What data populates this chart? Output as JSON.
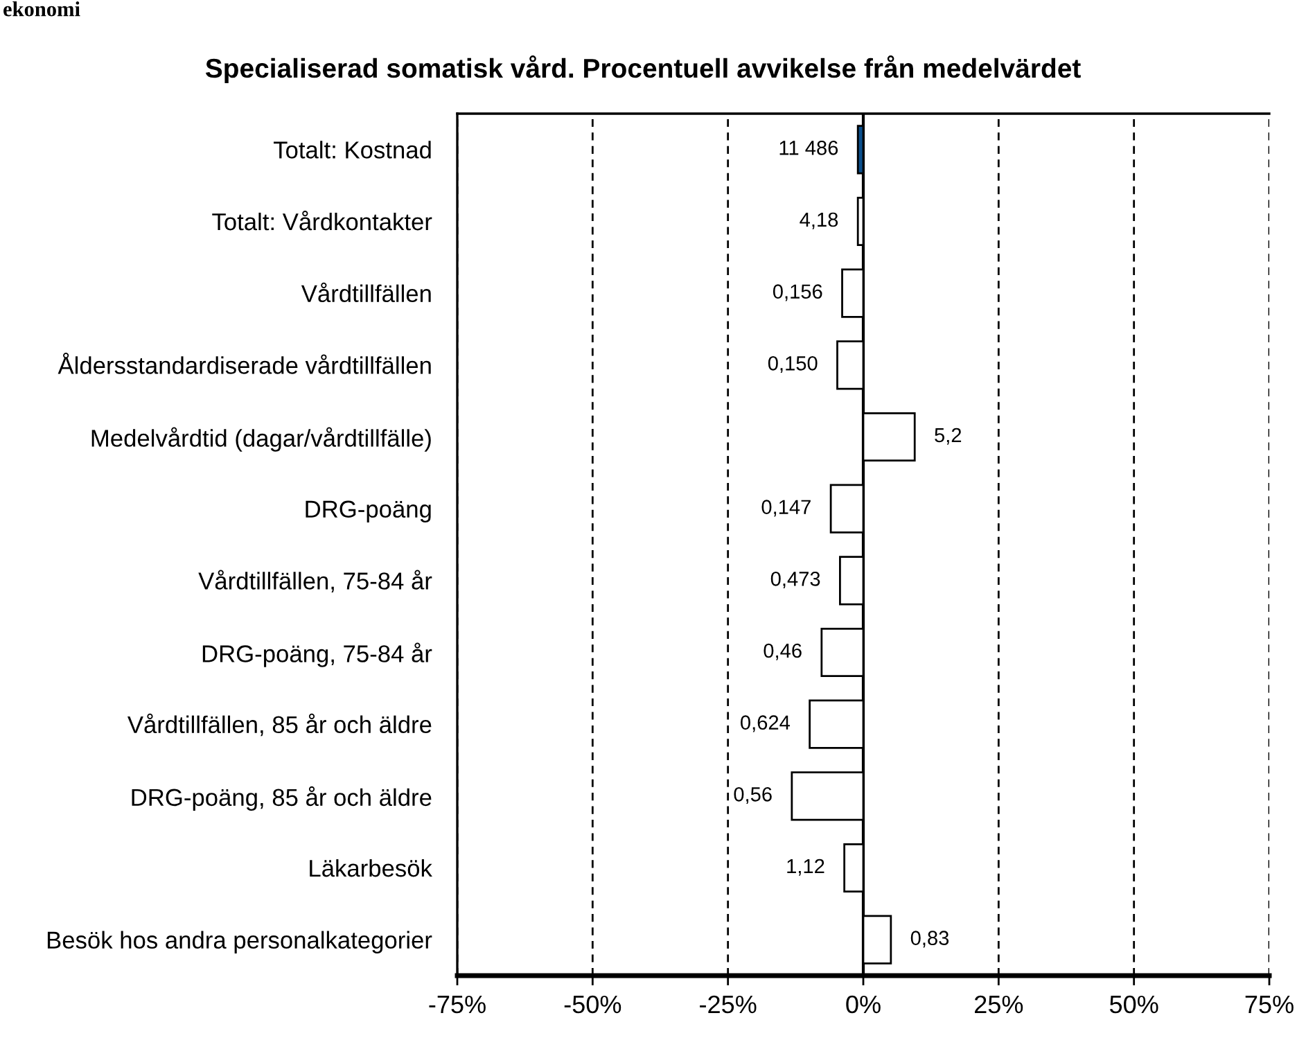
{
  "chart_data": {
    "type": "bar",
    "orientation": "horizontal",
    "title": "Specialiserad somatisk vård. Procentuell avvikelse från medelvärdet",
    "categories": [
      "Totalt: Kostnad",
      "Totalt: Vårdkontakter",
      "Vårdtillfällen",
      "Åldersstandardiserade vårdtillfällen",
      "Medelvårdtid (dagar/vårdtillfälle)",
      "DRG-poäng",
      "Vårdtillfällen, 75-84 år",
      "DRG-poäng, 75-84 år",
      "Vårdtillfällen, 85 år och äldre",
      "DRG-poäng, 85 år och äldre",
      "Läkarbesök",
      "Besök hos andra personalkategorier"
    ],
    "values": [
      -1,
      -1,
      -3.9,
      -4.8,
      9.5,
      -6.0,
      -4.3,
      -7.7,
      -9.9,
      -13.2,
      -3.5,
      5.1
    ],
    "colors": [
      "#0b4f8c",
      "#ffffff",
      "#ffffff",
      "#ffffff",
      "#ffffff",
      "#ffffff",
      "#ffffff",
      "#ffffff",
      "#ffffff",
      "#ffffff",
      "#ffffff",
      "#ffffff"
    ],
    "xlim": [
      -75,
      75
    ],
    "xticks": [
      {
        "value": -75,
        "label": "-75%"
      },
      {
        "value": -50,
        "label": "-50%"
      },
      {
        "value": -25,
        "label": "-25%"
      },
      {
        "value": 0,
        "label": "0%"
      },
      {
        "value": 25,
        "label": "25%"
      },
      {
        "value": 50,
        "label": "50%"
      },
      {
        "value": 75,
        "label": "75%"
      }
    ],
    "grid": "x",
    "ref_lines": [
      {
        "axis": "x",
        "value": 0,
        "color": "#000000",
        "line_style": "solid"
      }
    ],
    "annotations": [
      "ekonomi",
      {
        "text": "11 486",
        "x": -1,
        "y": "Totalt: Kostnad"
      },
      {
        "text": "4,18",
        "x": -1,
        "y": "Totalt: Vårdkontakter"
      },
      {
        "text": "0,156",
        "x": -3.9,
        "y": "Vårdtillfällen"
      },
      {
        "text": "0,150",
        "x": -4.8,
        "y": "Åldersstandardiserade vårdtillfällen"
      },
      {
        "text": "5,2",
        "x": 9.5,
        "y": "Medelvårdtid (dagar/vårdtillfälle)"
      },
      {
        "text": "0,147",
        "x": -6.0,
        "y": "DRG-poäng"
      },
      {
        "text": "0,473",
        "x": -4.3,
        "y": "Vårdtillfällen, 75-84 år"
      },
      {
        "text": "0,46",
        "x": -7.7,
        "y": "DRG-poäng, 75-84 år"
      },
      {
        "text": "0,624",
        "x": -9.9,
        "y": "Vårdtillfällen, 85 år och äldre"
      },
      {
        "text": "0,56",
        "x": -13.2,
        "y": "DRG-poäng, 85 år och äldre"
      },
      {
        "text": "1,12",
        "x": -3.5,
        "y": "Läkarbesök"
      },
      {
        "text": "0,83",
        "x": 5.1,
        "y": "Besök hos andra personalkategorier"
      }
    ]
  }
}
